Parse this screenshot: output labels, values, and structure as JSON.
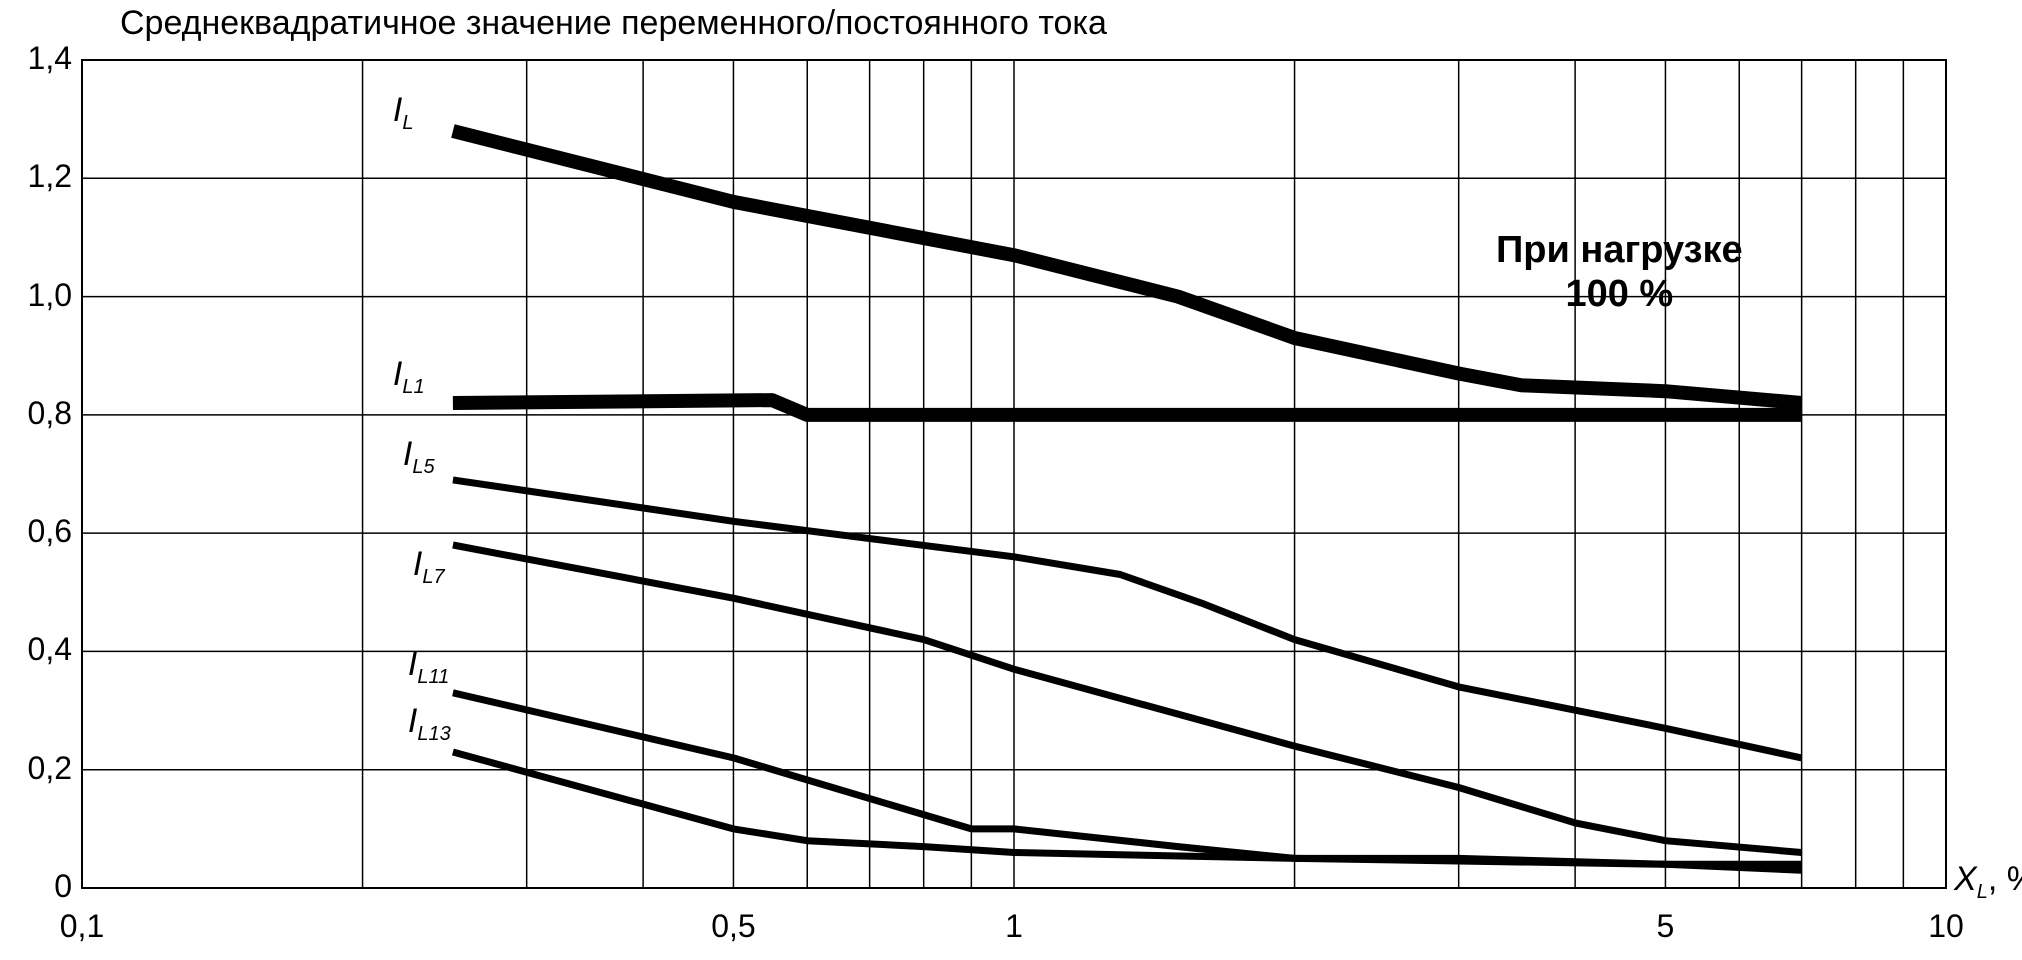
{
  "chart_data": {
    "type": "line",
    "title": "Среднеквадратичное значение переменного/постоянного тока",
    "xlabel": {
      "symbol": "X",
      "sub": "L",
      "unit": ", %"
    },
    "ylabel": "",
    "x_scale": "log",
    "xlim": [
      0.1,
      10
    ],
    "ylim": [
      0,
      1.4
    ],
    "grid": true,
    "y_ticks": [
      {
        "value": 0,
        "label": "0"
      },
      {
        "value": 0.2,
        "label": "0,2"
      },
      {
        "value": 0.4,
        "label": "0,4"
      },
      {
        "value": 0.6,
        "label": "0,6"
      },
      {
        "value": 0.8,
        "label": "0,8"
      },
      {
        "value": 1.0,
        "label": "1,0"
      },
      {
        "value": 1.2,
        "label": "1,2"
      },
      {
        "value": 1.4,
        "label": "1,4"
      }
    ],
    "x_ticks": [
      {
        "value": 0.1,
        "label": "0,1"
      },
      {
        "value": 0.5,
        "label": "0,5"
      },
      {
        "value": 1,
        "label": "1"
      },
      {
        "value": 5,
        "label": "5"
      },
      {
        "value": 10,
        "label": "10"
      }
    ],
    "x_gridlines": [
      0.1,
      0.2,
      0.3,
      0.4,
      0.5,
      0.6,
      0.7,
      0.8,
      0.9,
      1,
      2,
      3,
      4,
      5,
      6,
      7,
      8,
      9,
      10
    ],
    "annotation": {
      "line1": "При нагрузке",
      "line2": "100 %"
    },
    "series": [
      {
        "name": "I_L",
        "label_main": "I",
        "label_sub": "L",
        "stroke": 14,
        "x": [
          0.25,
          0.5,
          1.0,
          1.5,
          2.0,
          3.0,
          3.5,
          5.0,
          7.0
        ],
        "y": [
          1.28,
          1.16,
          1.07,
          1.0,
          0.93,
          0.87,
          0.85,
          0.84,
          0.82
        ]
      },
      {
        "name": "I_L1",
        "label_main": "I",
        "label_sub": "L1",
        "stroke": 14,
        "x": [
          0.25,
          0.55,
          0.6,
          1.0,
          5.0,
          7.0
        ],
        "y": [
          0.82,
          0.825,
          0.8,
          0.8,
          0.8,
          0.8
        ]
      },
      {
        "name": "I_L5",
        "label_main": "I",
        "label_sub": "L5",
        "stroke": 7,
        "x": [
          0.25,
          0.5,
          1.0,
          1.3,
          1.6,
          2.0,
          3.0,
          5.0,
          7.0
        ],
        "y": [
          0.69,
          0.62,
          0.56,
          0.53,
          0.48,
          0.42,
          0.34,
          0.27,
          0.22
        ]
      },
      {
        "name": "I_L7",
        "label_main": "I",
        "label_sub": "L7",
        "stroke": 7,
        "x": [
          0.25,
          0.5,
          0.8,
          1.0,
          2.0,
          3.0,
          4.0,
          5.0,
          7.0
        ],
        "y": [
          0.58,
          0.49,
          0.42,
          0.37,
          0.24,
          0.17,
          0.11,
          0.08,
          0.06
        ]
      },
      {
        "name": "I_L11",
        "label_main": "I",
        "label_sub": "L11",
        "stroke": 7,
        "x": [
          0.25,
          0.5,
          0.9,
          1.0,
          1.5,
          2.0,
          3.0,
          5.0,
          7.0
        ],
        "y": [
          0.33,
          0.22,
          0.1,
          0.1,
          0.07,
          0.05,
          0.05,
          0.04,
          0.04
        ]
      },
      {
        "name": "I_L13",
        "label_main": "I",
        "label_sub": "L13",
        "stroke": 7,
        "x": [
          0.25,
          0.5,
          0.6,
          0.8,
          1.0,
          2.0,
          5.0,
          7.0
        ],
        "y": [
          0.23,
          0.1,
          0.08,
          0.07,
          0.06,
          0.05,
          0.04,
          0.03
        ]
      }
    ]
  }
}
